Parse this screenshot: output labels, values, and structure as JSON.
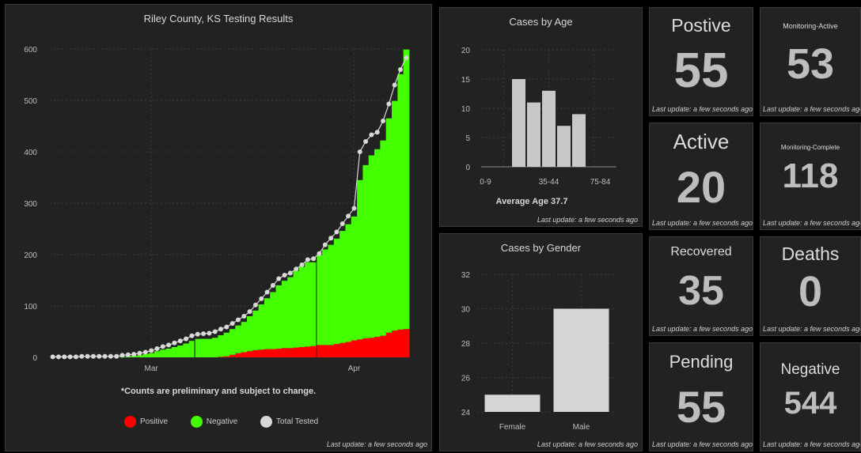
{
  "testing": {
    "title": "Riley County, KS Testing Results",
    "note": "*Counts are preliminary and subject to change.",
    "legend": [
      {
        "label": "Positive",
        "color": "#ff0000"
      },
      {
        "label": "Negative",
        "color": "#44ff00"
      },
      {
        "label": "Total Tested",
        "color": "#d8d8d8"
      }
    ],
    "update": "Last update: a few seconds ago"
  },
  "age": {
    "title": "Cases by Age",
    "caption": "Average Age 37.7",
    "update": "Last update: a few seconds ago"
  },
  "gender": {
    "title": "Cases by Gender",
    "update": "Last update: a few seconds ago"
  },
  "kpis": {
    "positive": {
      "title": "Postive",
      "value": "55",
      "update": "Last update: a few seconds ago"
    },
    "active": {
      "title": "Active",
      "value": "20",
      "update": "Last update: a few seconds ago"
    },
    "recovered": {
      "title": "Recovered",
      "value": "35",
      "update": "Last update: a few seconds ago"
    },
    "pending": {
      "title": "Pending",
      "value": "55",
      "update": "Last update: a few seconds ago"
    },
    "monitoring_active": {
      "title": "Monitoring-Active",
      "value": "53",
      "update": "Last update: a few seconds ago"
    },
    "monitoring_complete": {
      "title": "Monitoring-Complete",
      "value": "118",
      "update": "Last update: a few seconds ago"
    },
    "deaths": {
      "title": "Deaths",
      "value": "0",
      "update": "Last update: a few seconds ago"
    },
    "negative": {
      "title": "Negative",
      "value": "544",
      "update": "Last update: a few seconds ago"
    }
  },
  "chart_data": [
    {
      "type": "area",
      "title": "Riley County, KS Testing Results",
      "x_tick_labels": [
        "Mar",
        "Apr"
      ],
      "ylim": [
        0,
        600
      ],
      "y_ticks": [
        0,
        100,
        200,
        300,
        400,
        500,
        600
      ],
      "grid": true,
      "legend_position": "bottom",
      "x": [
        1,
        2,
        3,
        4,
        5,
        6,
        7,
        8,
        9,
        10,
        11,
        12,
        13,
        14,
        15,
        16,
        17,
        18,
        19,
        20,
        21,
        22,
        23,
        24,
        25,
        26,
        27,
        28,
        29,
        30,
        31,
        32,
        33,
        34,
        35,
        36,
        37,
        38,
        39,
        40,
        41,
        42,
        43,
        44,
        45,
        46,
        47,
        48,
        49,
        50,
        51,
        52,
        53,
        54,
        55,
        56,
        57,
        58,
        59,
        60,
        61,
        62
      ],
      "series": [
        {
          "name": "Positive",
          "values": [
            0,
            0,
            0,
            0,
            0,
            0,
            0,
            0,
            0,
            0,
            0,
            0,
            0,
            0,
            0,
            0,
            0,
            0,
            0,
            0,
            0,
            0,
            0,
            0,
            0,
            0,
            0,
            0,
            0,
            1,
            2,
            5,
            8,
            10,
            12,
            14,
            15,
            16,
            16,
            17,
            18,
            18,
            19,
            20,
            21,
            22,
            24,
            24,
            24,
            26,
            28,
            30,
            33,
            35,
            37,
            38,
            40,
            42,
            48,
            52,
            54,
            55
          ]
        },
        {
          "name": "Negative",
          "values": [
            0,
            0,
            0,
            0,
            0,
            0,
            0,
            0,
            0,
            0,
            0,
            0,
            1,
            2,
            3,
            4,
            6,
            8,
            12,
            15,
            17,
            20,
            23,
            27,
            32,
            36,
            36,
            36,
            38,
            42,
            46,
            50,
            54,
            59,
            68,
            77,
            88,
            99,
            111,
            123,
            131,
            138,
            149,
            156,
            164,
            163,
            175,
            186,
            195,
            205,
            218,
            229,
            241,
            310,
            337,
            355,
            365,
            380,
            417,
            447,
            497,
            544
          ]
        },
        {
          "name": "Total Tested",
          "values": [
            1,
            1,
            1,
            1,
            1,
            2,
            2,
            2,
            2,
            2,
            2,
            2,
            4,
            5,
            6,
            8,
            10,
            13,
            17,
            21,
            24,
            28,
            32,
            36,
            42,
            45,
            46,
            47,
            50,
            55,
            59,
            66,
            73,
            80,
            89,
            102,
            114,
            127,
            140,
            153,
            160,
            164,
            172,
            180,
            190,
            192,
            202,
            219,
            232,
            244,
            260,
            275,
            290,
            400,
            420,
            433,
            438,
            460,
            493,
            530,
            560,
            583
          ]
        }
      ]
    },
    {
      "type": "bar",
      "title": "Cases by Age",
      "tick_labels": [
        "0-9",
        "35-44",
        "75-84"
      ],
      "values": [
        0,
        0,
        15,
        11,
        13,
        7,
        9,
        0,
        0
      ],
      "ylim": [
        0,
        20
      ],
      "y_ticks": [
        0,
        5,
        10,
        15,
        20
      ],
      "annotation": "Average Age 37.7"
    },
    {
      "type": "bar",
      "title": "Cases by Gender",
      "categories": [
        "Female",
        "Male"
      ],
      "values": [
        25,
        30
      ],
      "ylim": [
        24,
        32
      ],
      "y_ticks": [
        24,
        26,
        28,
        30,
        32
      ]
    }
  ]
}
